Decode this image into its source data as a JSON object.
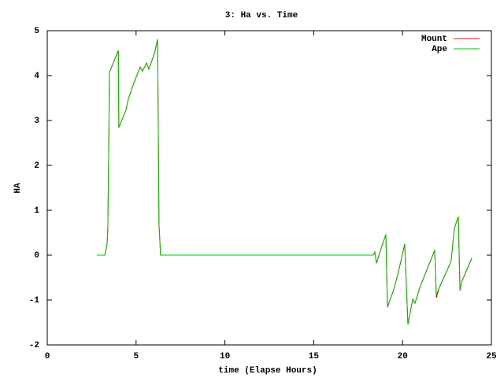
{
  "chart_data": {
    "type": "line",
    "title": "3: Ha vs. Time",
    "x_label": "time (Elapse Hours)",
    "y_label": "HA",
    "x": [
      2.79,
      3.24,
      3.37,
      3.41,
      3.46,
      3.5,
      4.0,
      4.03,
      4.43,
      4.57,
      4.88,
      5.23,
      5.36,
      5.59,
      5.72,
      6.03,
      6.21,
      6.25,
      6.29,
      6.38,
      18.35,
      18.44,
      18.53,
      18.79,
      19.06,
      19.15,
      19.5,
      19.77,
      20.12,
      20.3,
      20.57,
      20.7,
      20.97,
      21.81,
      21.9,
      22.07,
      22.65,
      22.74,
      22.92,
      23.14,
      23.23,
      23.32,
      23.89
    ],
    "series": [
      {
        "name": "Mount",
        "color": "#ff0000",
        "values": [
          0,
          0,
          0.25,
          0.6,
          2.35,
          4.07,
          4.56,
          2.84,
          3.23,
          3.49,
          3.84,
          4.19,
          4.1,
          4.28,
          4.14,
          4.49,
          4.81,
          2.79,
          0.68,
          0,
          0,
          0.07,
          -0.18,
          0.15,
          0.46,
          -1.16,
          -0.77,
          -0.37,
          0.25,
          -1.54,
          -0.98,
          -1.07,
          -0.72,
          0.11,
          -0.95,
          -0.72,
          -0.21,
          -0.1,
          0.61,
          0.86,
          -0.79,
          -0.6,
          -0.07
        ]
      },
      {
        "name": "Ape",
        "color": "#00c000",
        "values": [
          0,
          0,
          0.25,
          0.6,
          2.35,
          4.07,
          4.56,
          2.84,
          3.23,
          3.49,
          3.84,
          4.19,
          4.1,
          4.28,
          4.14,
          4.49,
          4.81,
          2.79,
          0.68,
          0,
          0,
          0.07,
          -0.18,
          0.15,
          0.46,
          -1.16,
          -0.77,
          -0.37,
          0.25,
          -1.54,
          -0.98,
          -1.07,
          -0.72,
          0.11,
          -0.89,
          -0.72,
          -0.21,
          -0.1,
          0.61,
          0.86,
          -0.79,
          -0.6,
          -0.07
        ]
      }
    ],
    "xlim": [
      0,
      25
    ],
    "xticks": [
      0,
      5,
      10,
      15,
      20,
      25
    ],
    "ylim": [
      -2,
      5
    ],
    "yticks": [
      -2,
      -1,
      0,
      1,
      2,
      3,
      4,
      5
    ],
    "legend": "top-right"
  }
}
